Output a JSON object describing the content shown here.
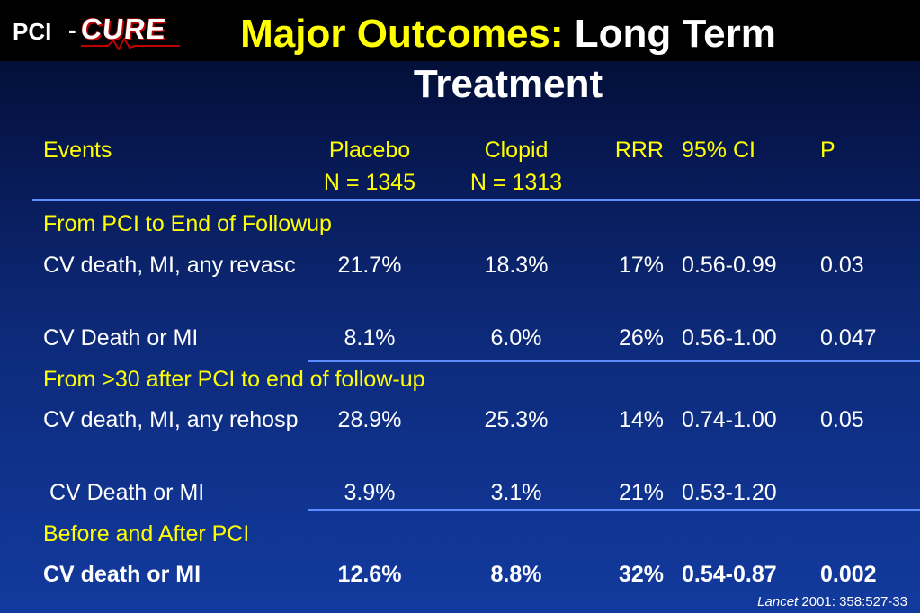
{
  "logo": {
    "prefix": "PCI",
    "dash": "-",
    "name": "CURE"
  },
  "title": {
    "accent": "Major Outcomes:",
    "rest": " Long Term Treatment"
  },
  "table": {
    "headers": {
      "events": "Events",
      "placebo": "Placebo",
      "placebo_n": "N = 1345",
      "clopid": "Clopid",
      "clopid_n": "N = 1313",
      "rrr": "RRR",
      "ci": "95% CI",
      "p": "P"
    },
    "sections": [
      {
        "label": "From PCI to End of Followup",
        "rows": [
          {
            "event": "CV death, MI, any revasc",
            "placebo": "21.7%",
            "clopid": "18.3%",
            "rrr": "17%",
            "ci": "0.56-0.99",
            "p": "0.03"
          },
          {
            "event": "CV Death or MI",
            "placebo": "8.1%",
            "clopid": "6.0%",
            "rrr": "26%",
            "ci": "0.56-1.00",
            "p": "0.047"
          }
        ]
      },
      {
        "label": "From >30 after PCI to end of follow-up",
        "rows": [
          {
            "event": "CV death, MI, any rehosp",
            "placebo": "28.9%",
            "clopid": "25.3%",
            "rrr": "14%",
            "ci": "0.74-1.00",
            "p": "0.05"
          },
          {
            "event": " CV Death or MI",
            "placebo": "3.9%",
            "clopid": "3.1%",
            "rrr": "21%",
            "ci": "0.53-1.20",
            "p": ""
          }
        ]
      },
      {
        "label": "Before and After PCI",
        "rows": [
          {
            "event": "CV death or MI",
            "placebo": "12.6%",
            "clopid": "8.8%",
            "rrr": "32%",
            "ci": "0.54-0.87",
            "p": "0.002"
          }
        ]
      }
    ]
  },
  "citation": {
    "journal": "Lancet",
    "ref": " 2001: 358:527-33"
  }
}
